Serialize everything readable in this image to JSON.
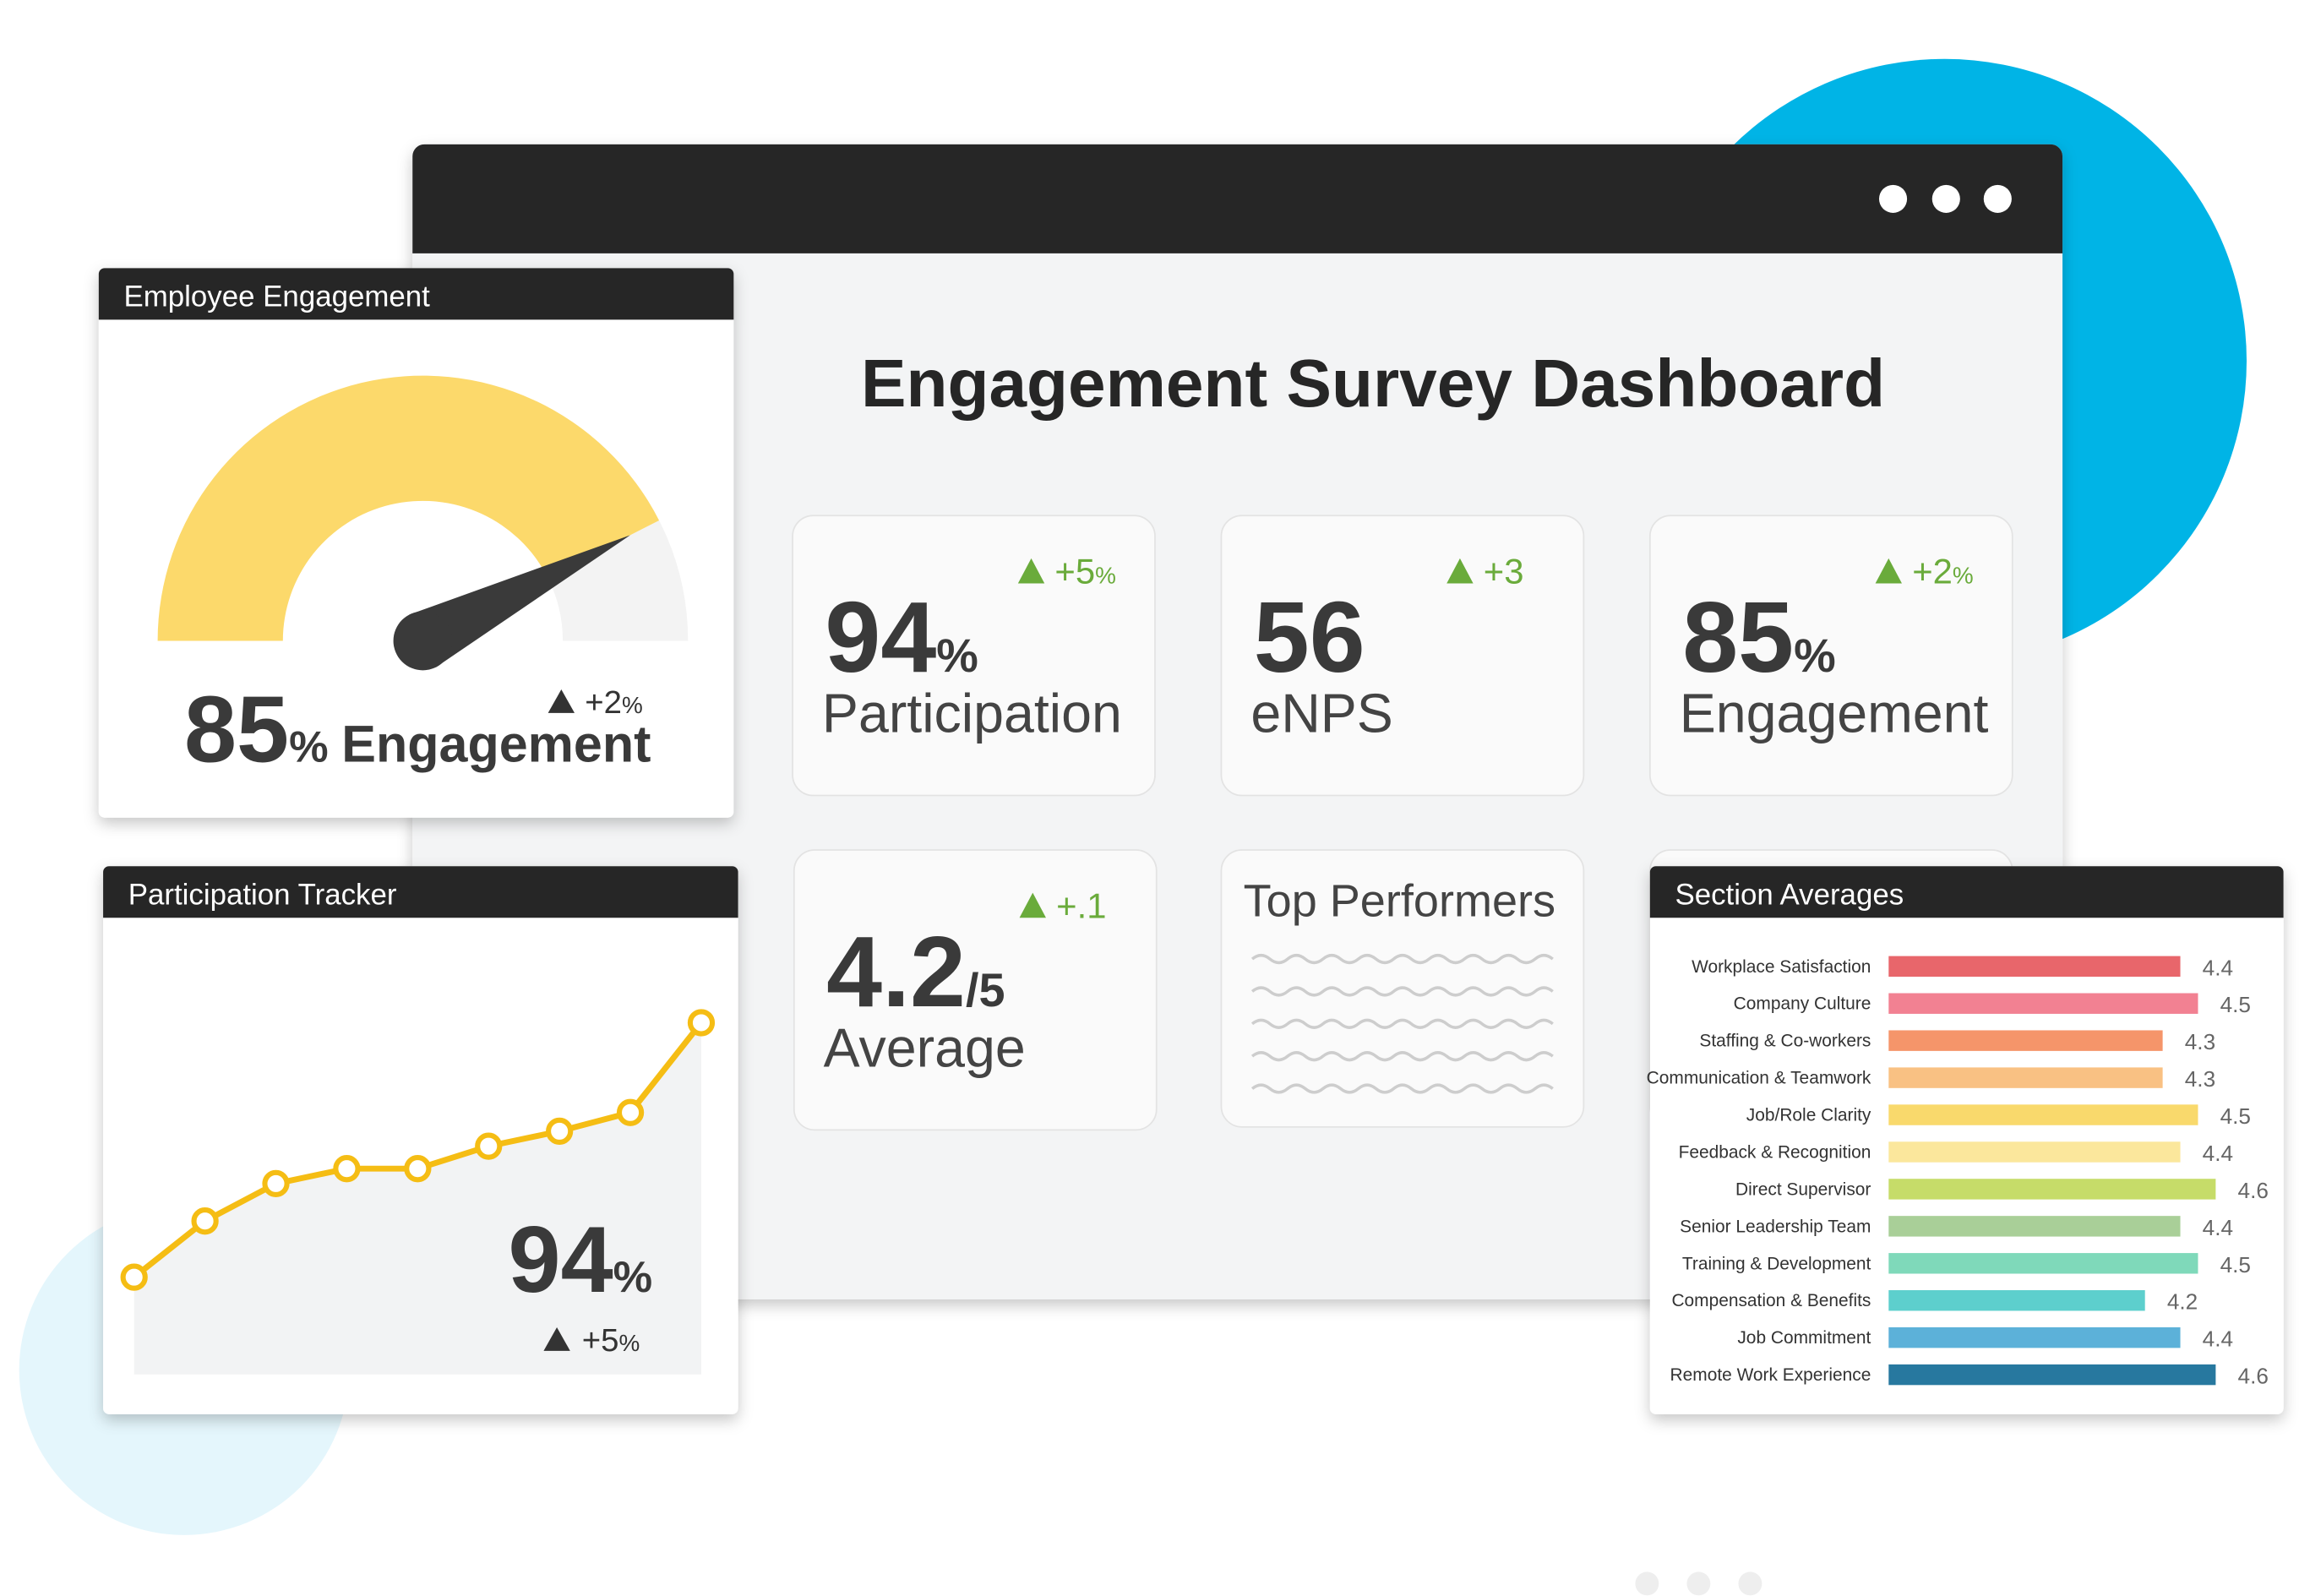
{
  "window": {
    "title": "Engagement Survey Dashboard"
  },
  "kpis": [
    {
      "value": 94,
      "unit": "%",
      "label": "Participation",
      "delta": "+5",
      "delta_unit": "%"
    },
    {
      "value": 56,
      "label": "eNPS",
      "delta": "+3"
    },
    {
      "value": 85,
      "unit": "%",
      "label": "Engagement",
      "delta": "+2",
      "delta_unit": "%"
    },
    {
      "value": 4.2,
      "unit": "/5",
      "label": "Average",
      "delta": "+.1"
    }
  ],
  "top_performers": {
    "title": "Top Performers"
  },
  "employee_engagement": {
    "title": "Employee Engagement",
    "value": 85,
    "unit": "%",
    "label": "Engagement",
    "delta": "+2",
    "delta_unit": "%",
    "range": [
      0,
      100
    ],
    "color": "#fcd96b",
    "track_color": "#f3f3f3"
  },
  "participation_tracker": {
    "title": "Participation Tracker",
    "values": [
      26,
      41,
      51,
      55,
      55,
      61,
      65,
      70,
      94
    ],
    "ylim": [
      0,
      100
    ],
    "color": "#f5bd14",
    "value": 94,
    "unit": "%",
    "delta": "+5",
    "delta_unit": "%"
  },
  "section_averages": {
    "title": "Section Averages",
    "xlim": [
      2.75,
      4.75
    ],
    "categories": [
      "Workplace Satisfaction",
      "Company Culture",
      "Staffing & Co-workers",
      "Communication & Teamwork",
      "Job/Role Clarity",
      "Feedback & Recognition",
      "Direct Supervisor",
      "Senior Leadership Team",
      "Training & Development",
      "Compensation & Benefits",
      "Job Commitment",
      "Remote Work Experience"
    ],
    "values": [
      4.4,
      4.5,
      4.3,
      4.3,
      4.5,
      4.4,
      4.6,
      4.4,
      4.5,
      4.2,
      4.4,
      4.6
    ],
    "colors": [
      "#e8666b",
      "#f28192",
      "#f5956a",
      "#f9c183",
      "#f9d96c",
      "#fbe79c",
      "#c6dc69",
      "#a9cf98",
      "#7fd9ba",
      "#5dcfcd",
      "#5cb1d9",
      "#27789f"
    ]
  }
}
